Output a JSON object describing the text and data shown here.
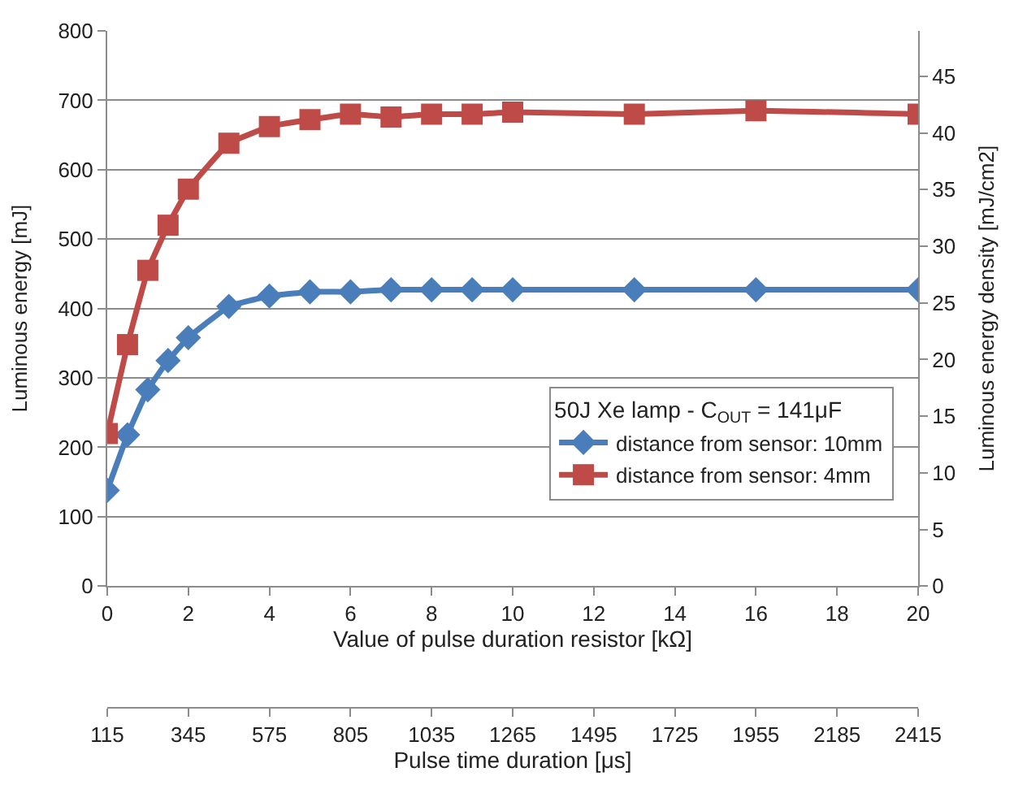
{
  "chart_data": {
    "type": "line",
    "xlabel": "Value of pulse duration resistor [kΩ]",
    "ylabel": "Luminous energy [mJ]",
    "y2label": "Luminous energy density [mJ/cm2]",
    "x2label": "Pulse time duration [μs]",
    "legend_title": "50J Xe lamp - C$_{OUT}$ = 141μF",
    "x": [
      0,
      0.5,
      1,
      1.5,
      2,
      3,
      4,
      5,
      6,
      7,
      8,
      9,
      10,
      13,
      16,
      20
    ],
    "series": [
      {
        "name": "distance from sensor: 10mm",
        "color": "#4a7ebb",
        "marker": "diamond",
        "values": [
          138,
          218,
          283,
          325,
          358,
          403,
          418,
          424,
          424,
          427,
          427,
          427,
          427,
          427,
          427,
          427
        ]
      },
      {
        "name": "distance from sensor: 4mm",
        "color": "#be4b48",
        "marker": "square",
        "values": [
          220,
          348,
          455,
          520,
          572,
          638,
          662,
          672,
          680,
          676,
          680,
          680,
          683,
          680,
          685,
          680
        ]
      }
    ],
    "xlim": [
      0,
      20
    ],
    "xticks": [
      0,
      2,
      4,
      6,
      8,
      10,
      12,
      14,
      16,
      18,
      20
    ],
    "ylim": [
      0,
      800
    ],
    "yticks": [
      0,
      100,
      200,
      300,
      400,
      500,
      600,
      700,
      800
    ],
    "y2lim": [
      0,
      49
    ],
    "y2ticks": [
      0,
      5,
      10,
      15,
      20,
      25,
      30,
      35,
      40,
      45
    ],
    "x2lim": [
      115,
      2415
    ],
    "x2ticks": [
      115,
      345,
      575,
      805,
      1035,
      1265,
      1495,
      1725,
      1955,
      2185,
      2415
    ],
    "grid": "y",
    "legend": "right",
    "line_style": "solid"
  }
}
